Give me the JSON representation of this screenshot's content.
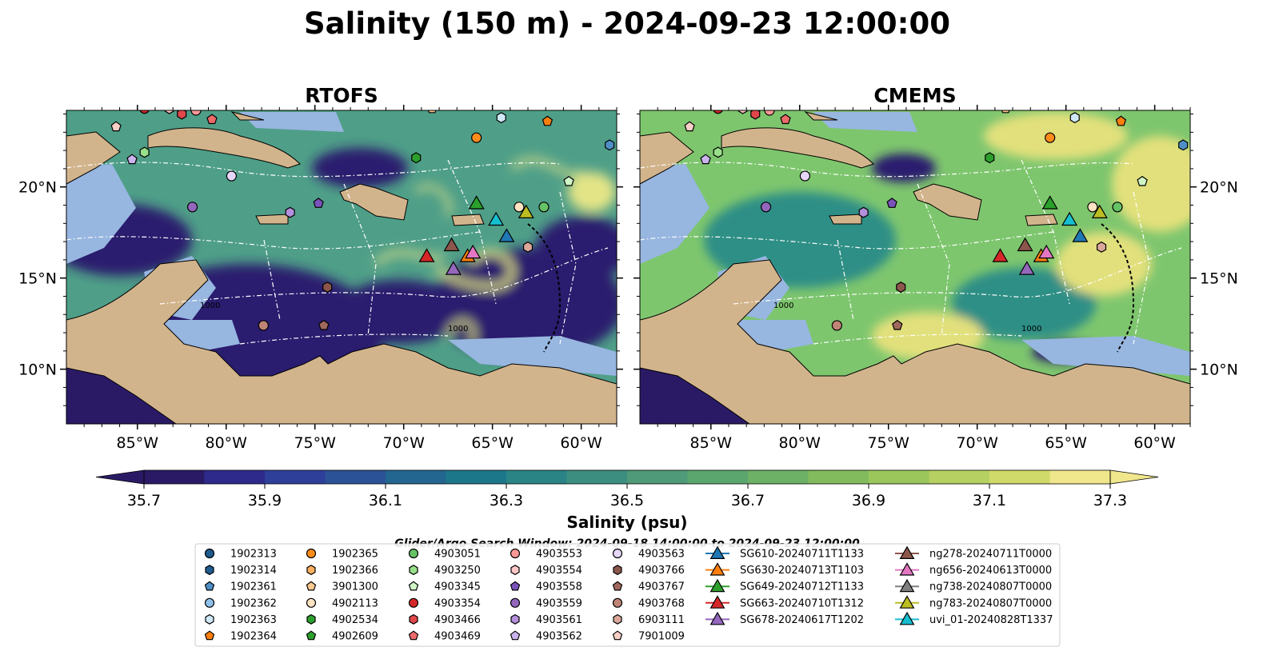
{
  "figure": {
    "title": "Salinity (150 m) - 2024-09-23 12:00:00",
    "search_window": "Glider/Argo Search Window: 2024-09-18 14:00:00 to 2024-09-23 12:00:00"
  },
  "panels": [
    {
      "title": "RTOFS",
      "lat_ticks": [
        "20°N",
        "15°N",
        "10°N"
      ],
      "lon_ticks": [
        "85°W",
        "80°W",
        "75°W",
        "70°W",
        "65°W",
        "60°W"
      ],
      "tick_side": "left",
      "field_colors": {
        "base": "#4f9f88",
        "low": "#2a1f6e",
        "high": "#e3e486"
      },
      "contour_labels": [
        "1000",
        "1000"
      ]
    },
    {
      "title": "CMEMS",
      "lat_ticks": [
        "20°N",
        "15°N",
        "10°N"
      ],
      "lon_ticks": [
        "85°W",
        "80°W",
        "75°W",
        "70°W",
        "65°W",
        "60°W"
      ],
      "tick_side": "right",
      "field_colors": {
        "base": "#7ec66e",
        "low": "#2a1f6e",
        "high": "#e2e07c"
      },
      "contour_labels": [
        "1000",
        "1000"
      ]
    }
  ],
  "map_extent": {
    "lon_min": -89,
    "lon_max": -58,
    "lat_min": 7,
    "lat_max": 24.2
  },
  "colors": {
    "land": "#d2b48c",
    "shelf": "#97b6e0",
    "boundary": "#ffffff"
  },
  "colorbar": {
    "label": "Salinity (psu)",
    "min": 35.7,
    "max": 37.3,
    "ticks": [
      "35.7",
      "35.9",
      "36.1",
      "36.3",
      "36.5",
      "36.7",
      "36.9",
      "37.1",
      "37.3"
    ],
    "colors": [
      "#2a1a66",
      "#2e2a8c",
      "#2e3f9a",
      "#2b5296",
      "#236690",
      "#1d778b",
      "#2a8486",
      "#3c8f80",
      "#4f9a78",
      "#5ba66f",
      "#6cb165",
      "#82bb5d",
      "#9bc65b",
      "#b6d062",
      "#d0da6a",
      "#f0e68c"
    ]
  },
  "markers": [
    {
      "x": 175,
      "y": 198
    },
    {
      "x": 246,
      "y": 210
    },
    {
      "x": 317,
      "y": 247
    },
    {
      "x": 395,
      "y": 240
    },
    {
      "x": 412,
      "y": 355
    },
    {
      "x": 591,
      "y": 305
    },
    {
      "x": 654,
      "y": 305
    },
    {
      "x": 716,
      "y": 242
    },
    {
      "x": 760,
      "y": 225
    }
  ],
  "legend": {
    "columns": [
      [
        {
          "label": "1902313",
          "marker": "circle",
          "color": "#1f5b8f"
        },
        {
          "label": "1902314",
          "marker": "hexagon",
          "color": "#1f5b8f"
        },
        {
          "label": "1902361",
          "marker": "pentagon",
          "color": "#4f8fc6"
        },
        {
          "label": "1902362",
          "marker": "circle",
          "color": "#8fc1ea"
        },
        {
          "label": "1902363",
          "marker": "hexagon",
          "color": "#cfe8f8"
        },
        {
          "label": "1902364",
          "marker": "pentagon",
          "color": "#ff7f0e"
        }
      ],
      [
        {
          "label": "1902365",
          "marker": "circle",
          "color": "#ff8c1a"
        },
        {
          "label": "1902366",
          "marker": "hexagon",
          "color": "#ffb060"
        },
        {
          "label": "3901300",
          "marker": "pentagon",
          "color": "#ffc98f"
        },
        {
          "label": "4902113",
          "marker": "circle",
          "color": "#ffe3c2"
        },
        {
          "label": "4902534",
          "marker": "hexagon",
          "color": "#2ca02c"
        },
        {
          "label": "4902609",
          "marker": "pentagon",
          "color": "#2ca02c"
        }
      ],
      [
        {
          "label": "4903051",
          "marker": "circle",
          "color": "#66c266"
        },
        {
          "label": "4903250",
          "marker": "hexagon",
          "color": "#98df8a"
        },
        {
          "label": "4903345",
          "marker": "pentagon",
          "color": "#d0f5c6"
        },
        {
          "label": "4903354",
          "marker": "circle",
          "color": "#d62728"
        },
        {
          "label": "4903466",
          "marker": "hexagon",
          "color": "#e0474a"
        },
        {
          "label": "4903469",
          "marker": "pentagon",
          "color": "#ec6a6a"
        }
      ],
      [
        {
          "label": "4903553",
          "marker": "circle",
          "color": "#ff9896"
        },
        {
          "label": "4903554",
          "marker": "hexagon",
          "color": "#ffc7c6"
        },
        {
          "label": "4903558",
          "marker": "pentagon",
          "color": "#7b52b9"
        },
        {
          "label": "4903559",
          "marker": "circle",
          "color": "#9467bd"
        },
        {
          "label": "4903561",
          "marker": "hexagon",
          "color": "#b48fdc"
        },
        {
          "label": "4903562",
          "marker": "pentagon",
          "color": "#cbb4ee"
        }
      ],
      [
        {
          "label": "4903563",
          "marker": "circle",
          "color": "#e6d6f8"
        },
        {
          "label": "4903766",
          "marker": "hexagon",
          "color": "#8c564b"
        },
        {
          "label": "4903767",
          "marker": "pentagon",
          "color": "#a0685c"
        },
        {
          "label": "4903768",
          "marker": "circle",
          "color": "#c08476"
        },
        {
          "label": "6903111",
          "marker": "hexagon",
          "color": "#dba79a"
        },
        {
          "label": "7901009",
          "marker": "pentagon",
          "color": "#f7cfc6"
        }
      ],
      [
        {
          "label": "SG610-20240711T1133",
          "marker": "triangle",
          "color": "#1f77b4"
        },
        {
          "label": "SG630-20240713T1103",
          "marker": "triangle",
          "color": "#ff7f0e"
        },
        {
          "label": "SG649-20240712T1133",
          "marker": "triangle",
          "color": "#2ca02c"
        },
        {
          "label": "SG663-20240710T1312",
          "marker": "triangle",
          "color": "#d62728"
        },
        {
          "label": "SG678-20240617T1202",
          "marker": "triangle",
          "color": "#9467bd"
        }
      ],
      [
        {
          "label": "ng278-20240711T0000",
          "marker": "triangle",
          "color": "#8c564b"
        },
        {
          "label": "ng656-20240613T0000",
          "marker": "triangle",
          "color": "#e377c2"
        },
        {
          "label": "ng738-20240807T0000",
          "marker": "triangle",
          "color": "#7f7f7f"
        },
        {
          "label": "ng783-20240807T0000",
          "marker": "triangle",
          "color": "#bcbd22"
        },
        {
          "label": "uvi_01-20240828T1337",
          "marker": "triangle",
          "color": "#17becf"
        }
      ]
    ]
  },
  "map_points": {
    "argo": [
      {
        "lon": -84.6,
        "lat": 24.3,
        "color": "#d62728",
        "marker": "circle"
      },
      {
        "lon": -83.2,
        "lat": 24.3,
        "color": "#ffc7c6",
        "marker": "hexagon"
      },
      {
        "lon": -82.5,
        "lat": 24.0,
        "color": "#e0474a",
        "marker": "hexagon"
      },
      {
        "lon": -81.7,
        "lat": 24.2,
        "color": "#ff9896",
        "marker": "circle"
      },
      {
        "lon": -80.8,
        "lat": 23.7,
        "color": "#ec6a6a",
        "marker": "pentagon"
      },
      {
        "lon": -86.2,
        "lat": 23.3,
        "color": "#f7cfc6",
        "marker": "pentagon"
      },
      {
        "lon": -84.6,
        "lat": 21.9,
        "color": "#98df8a",
        "marker": "hexagon"
      },
      {
        "lon": -85.3,
        "lat": 21.5,
        "color": "#cbb4ee",
        "marker": "pentagon"
      },
      {
        "lon": -79.7,
        "lat": 20.6,
        "color": "#e6d6f8",
        "marker": "circle"
      },
      {
        "lon": -81.9,
        "lat": 18.9,
        "color": "#9467bd",
        "marker": "circle"
      },
      {
        "lon": -76.4,
        "lat": 18.6,
        "color": "#b48fdc",
        "marker": "hexagon"
      },
      {
        "lon": -74.8,
        "lat": 19.1,
        "color": "#7b52b9",
        "marker": "pentagon"
      },
      {
        "lon": -74.3,
        "lat": 14.5,
        "color": "#8c564b",
        "marker": "hexagon"
      },
      {
        "lon": -77.9,
        "lat": 12.4,
        "color": "#c08476",
        "marker": "circle"
      },
      {
        "lon": -74.5,
        "lat": 12.4,
        "color": "#a0685c",
        "marker": "pentagon"
      },
      {
        "lon": -68.4,
        "lat": 24.3,
        "color": "#ffc98f",
        "marker": "pentagon"
      },
      {
        "lon": -64.5,
        "lat": 23.8,
        "color": "#cfe8f8",
        "marker": "hexagon"
      },
      {
        "lon": -65.9,
        "lat": 22.7,
        "color": "#ff8c1a",
        "marker": "circle"
      },
      {
        "lon": -61.9,
        "lat": 23.6,
        "color": "#ff7f0e",
        "marker": "pentagon"
      },
      {
        "lon": -69.3,
        "lat": 21.6,
        "color": "#2ca02c",
        "marker": "hexagon"
      },
      {
        "lon": -58.4,
        "lat": 22.3,
        "color": "#4f8fc6",
        "marker": "hexagon"
      },
      {
        "lon": -60.7,
        "lat": 20.3,
        "color": "#d0f5c6",
        "marker": "pentagon"
      },
      {
        "lon": -62.1,
        "lat": 18.9,
        "color": "#66c266",
        "marker": "circle"
      },
      {
        "lon": -63.5,
        "lat": 18.9,
        "color": "#ffe3c2",
        "marker": "circle"
      },
      {
        "lon": -63.0,
        "lat": 16.7,
        "color": "#dba79a",
        "marker": "hexagon"
      }
    ],
    "gliders": [
      {
        "lon": -65.9,
        "lat": 19.1,
        "color": "#2ca02c"
      },
      {
        "lon": -64.8,
        "lat": 18.2,
        "color": "#17becf"
      },
      {
        "lon": -63.1,
        "lat": 18.6,
        "color": "#bcbd22"
      },
      {
        "lon": -64.2,
        "lat": 17.3,
        "color": "#1f77b4"
      },
      {
        "lon": -68.7,
        "lat": 16.2,
        "color": "#d62728"
      },
      {
        "lon": -67.3,
        "lat": 16.8,
        "color": "#8c564b"
      },
      {
        "lon": -66.4,
        "lat": 16.2,
        "color": "#ff7f0e"
      },
      {
        "lon": -66.1,
        "lat": 16.4,
        "color": "#e377c2"
      },
      {
        "lon": -67.2,
        "lat": 15.5,
        "color": "#9467bd"
      }
    ]
  }
}
